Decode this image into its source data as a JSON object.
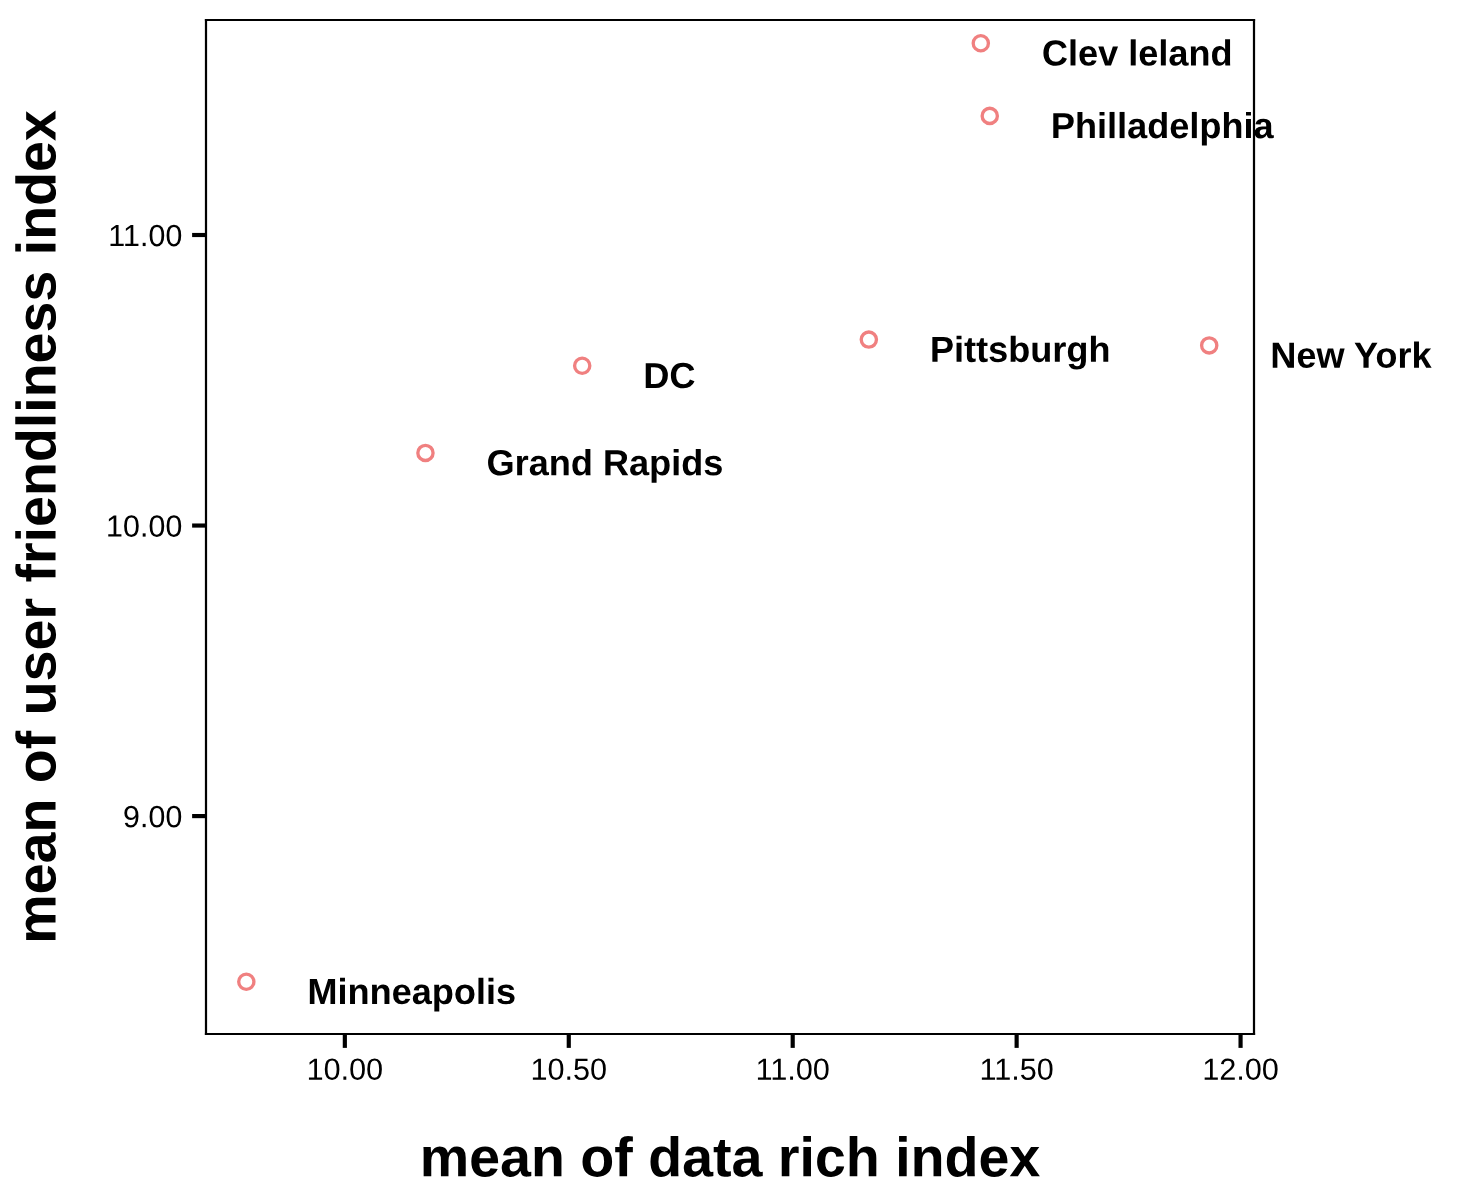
{
  "chart_data": {
    "type": "scatter",
    "xlabel": "mean of data rich index",
    "ylabel": "mean of user friendliness index",
    "x": [
      11.42,
      11.44,
      11.17,
      11.93,
      10.53,
      10.18,
      9.78
    ],
    "series": [
      {
        "color": "#f08080",
        "values": [
          11.66,
          11.41,
          10.64,
          10.62,
          10.55,
          10.25,
          8.43
        ]
      }
    ],
    "annotations": [
      {
        "text": "Clev leland",
        "x": 11.42,
        "y": 11.66
      },
      {
        "text": "Philladelphia",
        "x": 11.44,
        "y": 11.41
      },
      {
        "text": "Pittsburgh",
        "x": 11.17,
        "y": 10.64
      },
      {
        "text": "New York",
        "x": 11.93,
        "y": 10.62
      },
      {
        "text": "DC",
        "x": 10.53,
        "y": 10.55
      },
      {
        "text": "Grand Rapids",
        "x": 10.18,
        "y": 10.25
      },
      {
        "text": "Minneapolis",
        "x": 9.78,
        "y": 8.43
      }
    ],
    "xlim": [
      9.69,
      12.03
    ],
    "ylim": [
      8.25,
      11.74
    ],
    "xticks": [
      {
        "value": 10,
        "label": "10.00"
      },
      {
        "value": 10.5,
        "label": "10.50"
      },
      {
        "value": 11,
        "label": "11.00"
      },
      {
        "value": 11.5,
        "label": "11.50"
      },
      {
        "value": 12,
        "label": "12.00"
      }
    ],
    "yticks": [
      {
        "value": 9,
        "label": "9.00"
      },
      {
        "value": 10,
        "label": "10.00"
      },
      {
        "value": 11,
        "label": "11.00"
      }
    ],
    "marker": "circle",
    "grid": false,
    "legend": false
  }
}
